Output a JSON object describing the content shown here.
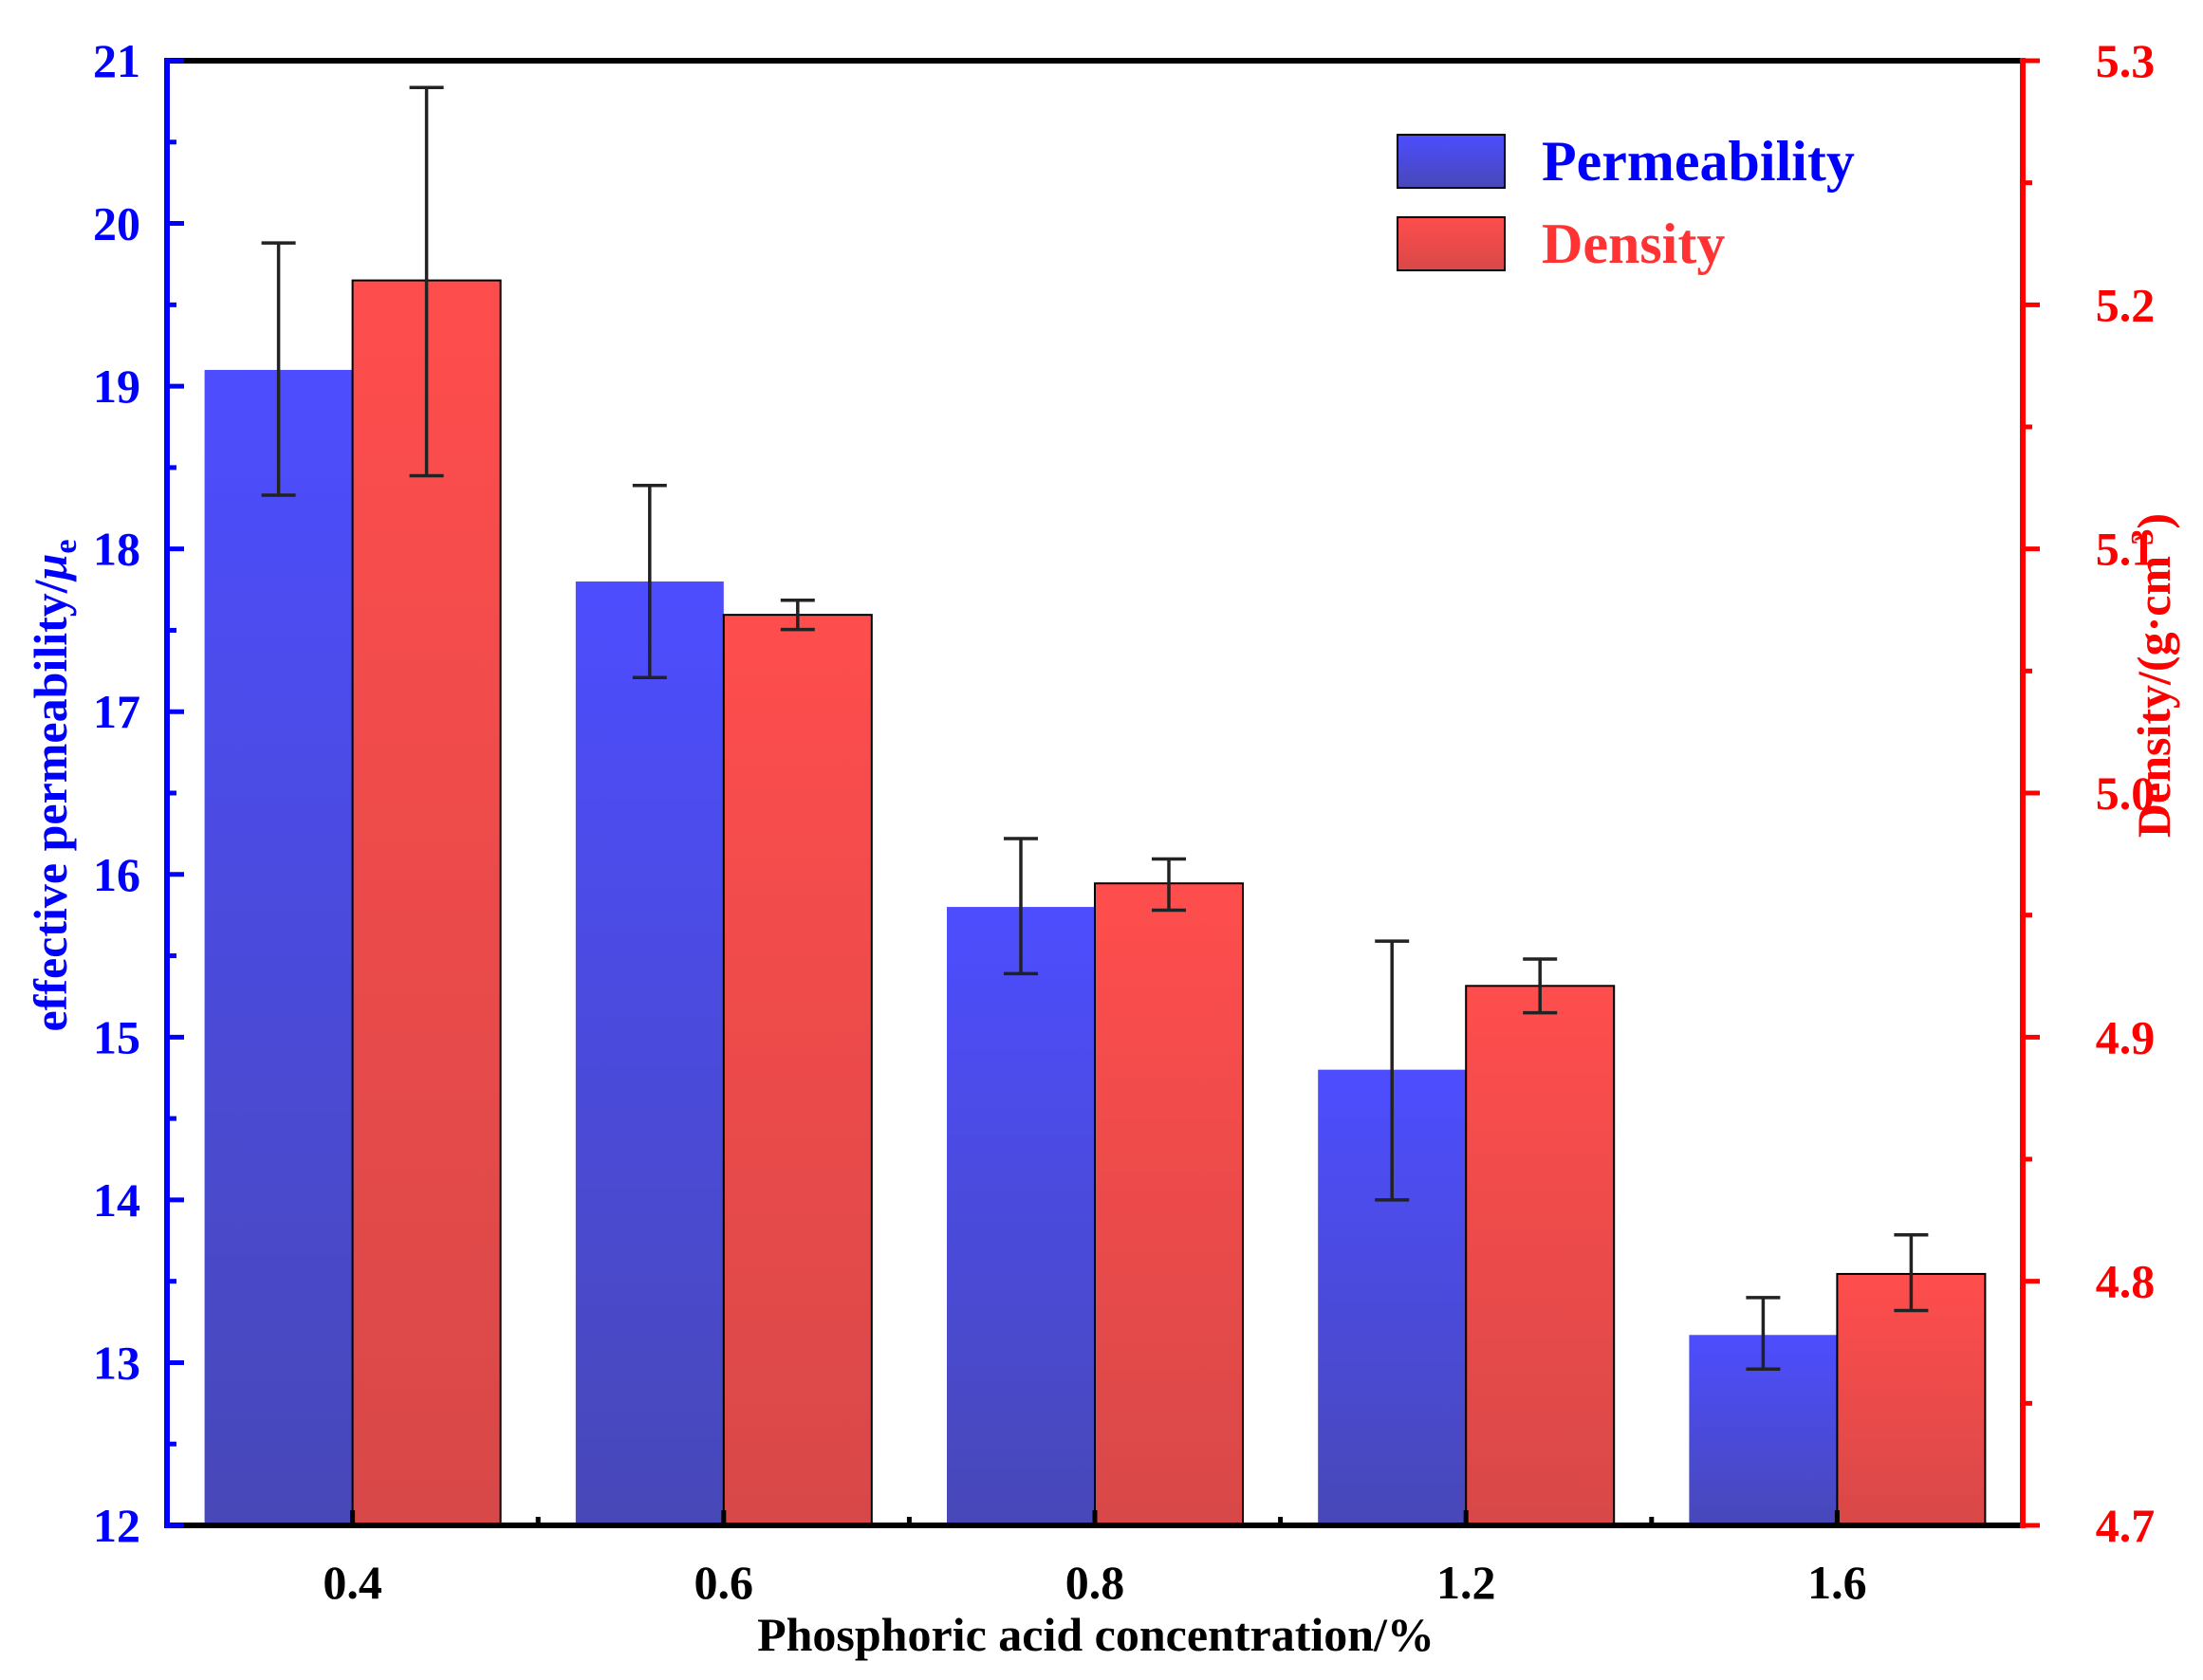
{
  "chart_data": {
    "type": "bar",
    "categories": [
      "0.4",
      "0.6",
      "0.8",
      "1.2",
      "1.6"
    ],
    "xlabel": "Phosphoric acid concentration/%",
    "ylabel_left": {
      "text": "effective permeability/",
      "symbol": "μ",
      "subscript": "e"
    },
    "ylabel_right": {
      "text": "Density/(g·cm",
      "superscript": "-3",
      "close": ")"
    },
    "y_left": {
      "lim": [
        12,
        21
      ],
      "ticks": [
        "12",
        "13",
        "14",
        "15",
        "16",
        "17",
        "18",
        "19",
        "20",
        "21"
      ]
    },
    "y_right": {
      "lim": [
        4.7,
        5.3
      ],
      "ticks": [
        "4.7",
        "4.8",
        "4.9",
        "5.0",
        "5.1",
        "5.2",
        "5.3"
      ]
    },
    "series": [
      {
        "name": "Permeability",
        "axis": "left",
        "values": [
          19.1,
          17.8,
          15.8,
          14.8,
          13.17
        ],
        "err_low": [
          18.33,
          17.21,
          15.39,
          14.0,
          12.96
        ],
        "err_high": [
          19.88,
          18.39,
          16.22,
          15.59,
          13.4
        ]
      },
      {
        "name": "Density",
        "axis": "right",
        "values": [
          5.21,
          5.073,
          4.963,
          4.921,
          4.803
        ],
        "err_low": [
          5.13,
          5.067,
          4.952,
          4.91,
          4.788
        ],
        "err_high": [
          5.289,
          5.079,
          4.973,
          4.932,
          4.819
        ]
      }
    ],
    "legend": {
      "position": "top-right",
      "labels": [
        "Permeability",
        "Density"
      ]
    },
    "colors": {
      "left_axis": "#0000ff",
      "right_axis": "#ff0000",
      "bar_blue_top": "#4d4dff",
      "bar_blue_bottom": "#4848b8",
      "bar_red_top": "#ff4d4d",
      "bar_red_bottom": "#d84848",
      "frame": "#000000"
    }
  }
}
